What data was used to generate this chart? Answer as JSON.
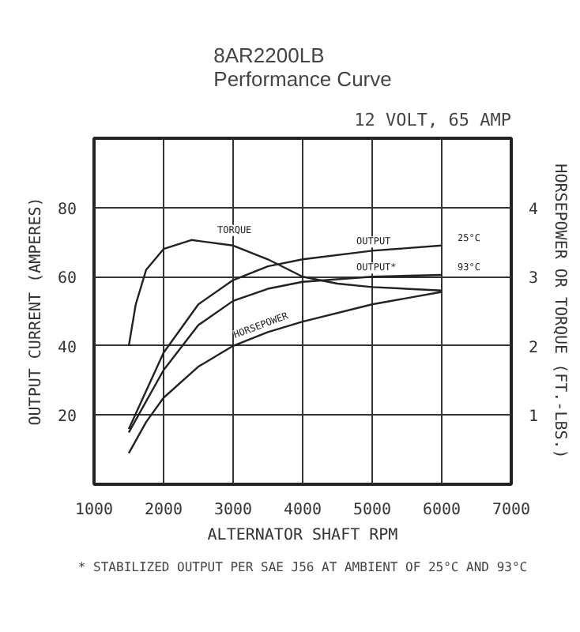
{
  "chart_data": {
    "type": "line",
    "title": "8AR2200LB\nPerformance Curve",
    "subtitle": "12 VOLT, 65 AMP",
    "xlabel": "ALTERNATOR SHAFT RPM",
    "ylabel": "OUTPUT CURRENT (AMPERES)",
    "y2label": "HORSEPOWER OR TORQUE (FT.-LBS.)",
    "xlim": [
      1000,
      7000
    ],
    "xticks": [
      1000,
      2000,
      3000,
      4000,
      5000,
      6000,
      7000
    ],
    "ylim": [
      0,
      100
    ],
    "yticks": [
      20,
      40,
      60,
      80
    ],
    "y2lim": [
      0,
      5
    ],
    "y2ticks": [
      1,
      2,
      3,
      4
    ],
    "grid": true,
    "series": [
      {
        "name": "TORQUE",
        "color": "#222222",
        "axis": "y2",
        "x": [
          1500,
          1600,
          1750,
          2000,
          2400,
          3000,
          3500,
          4000,
          4500,
          5000,
          6000
        ],
        "values": [
          2.0,
          2.6,
          3.1,
          3.4,
          3.53,
          3.45,
          3.25,
          3.0,
          2.9,
          2.85,
          2.8
        ]
      },
      {
        "name": "OUTPUT",
        "color": "#222222",
        "x": [
          1500,
          2000,
          2500,
          3000,
          3500,
          4000,
          5000,
          6000
        ],
        "values": [
          16,
          38,
          52,
          59,
          63,
          65,
          67.5,
          69
        ]
      },
      {
        "name": "OUTPUT*",
        "color": "#222222",
        "x": [
          1500,
          2000,
          2500,
          3000,
          3500,
          4000,
          5000,
          6000
        ],
        "values": [
          15,
          33,
          46,
          53,
          56.5,
          58.5,
          60,
          60.5
        ]
      },
      {
        "name": "HORSEPOWER",
        "color": "#222222",
        "axis": "y2",
        "x": [
          1500,
          1750,
          2000,
          2500,
          3000,
          3500,
          4000,
          5000,
          6000
        ],
        "values": [
          0.45,
          0.9,
          1.25,
          1.7,
          2.0,
          2.2,
          2.35,
          2.6,
          2.78
        ]
      }
    ],
    "annotations": [
      {
        "text": "25°C",
        "x": 6000,
        "y": 69
      },
      {
        "text": "93°C",
        "x": 6000,
        "y": 60.5
      },
      "* STABILIZED OUTPUT PER SAE J56 AT AMBIENT OF 25°C AND 93°C"
    ]
  }
}
